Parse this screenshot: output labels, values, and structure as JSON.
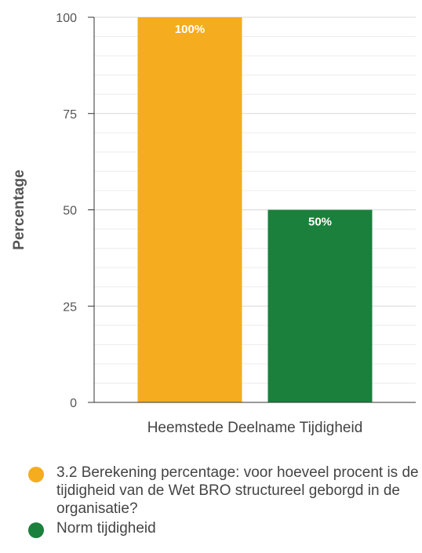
{
  "chart_data": {
    "type": "bar",
    "ylabel": "Percentage",
    "xlabel": "Heemstede Deelname Tijdigheid",
    "ylim": [
      0,
      100
    ],
    "yticks": [
      0,
      25,
      50,
      75,
      100
    ],
    "grid": true,
    "legend_position": "bottom",
    "series": [
      {
        "name": "3.2 Berekening percentage: voor hoeveel procent is de tijdigheid van de Wet BRO structureel geborgd in de organisatie?",
        "value": 100,
        "label": "100%",
        "color": "#f5ac1e"
      },
      {
        "name": "Norm tijdigheid",
        "value": 50,
        "label": "50%",
        "color": "#1a803c"
      }
    ]
  }
}
